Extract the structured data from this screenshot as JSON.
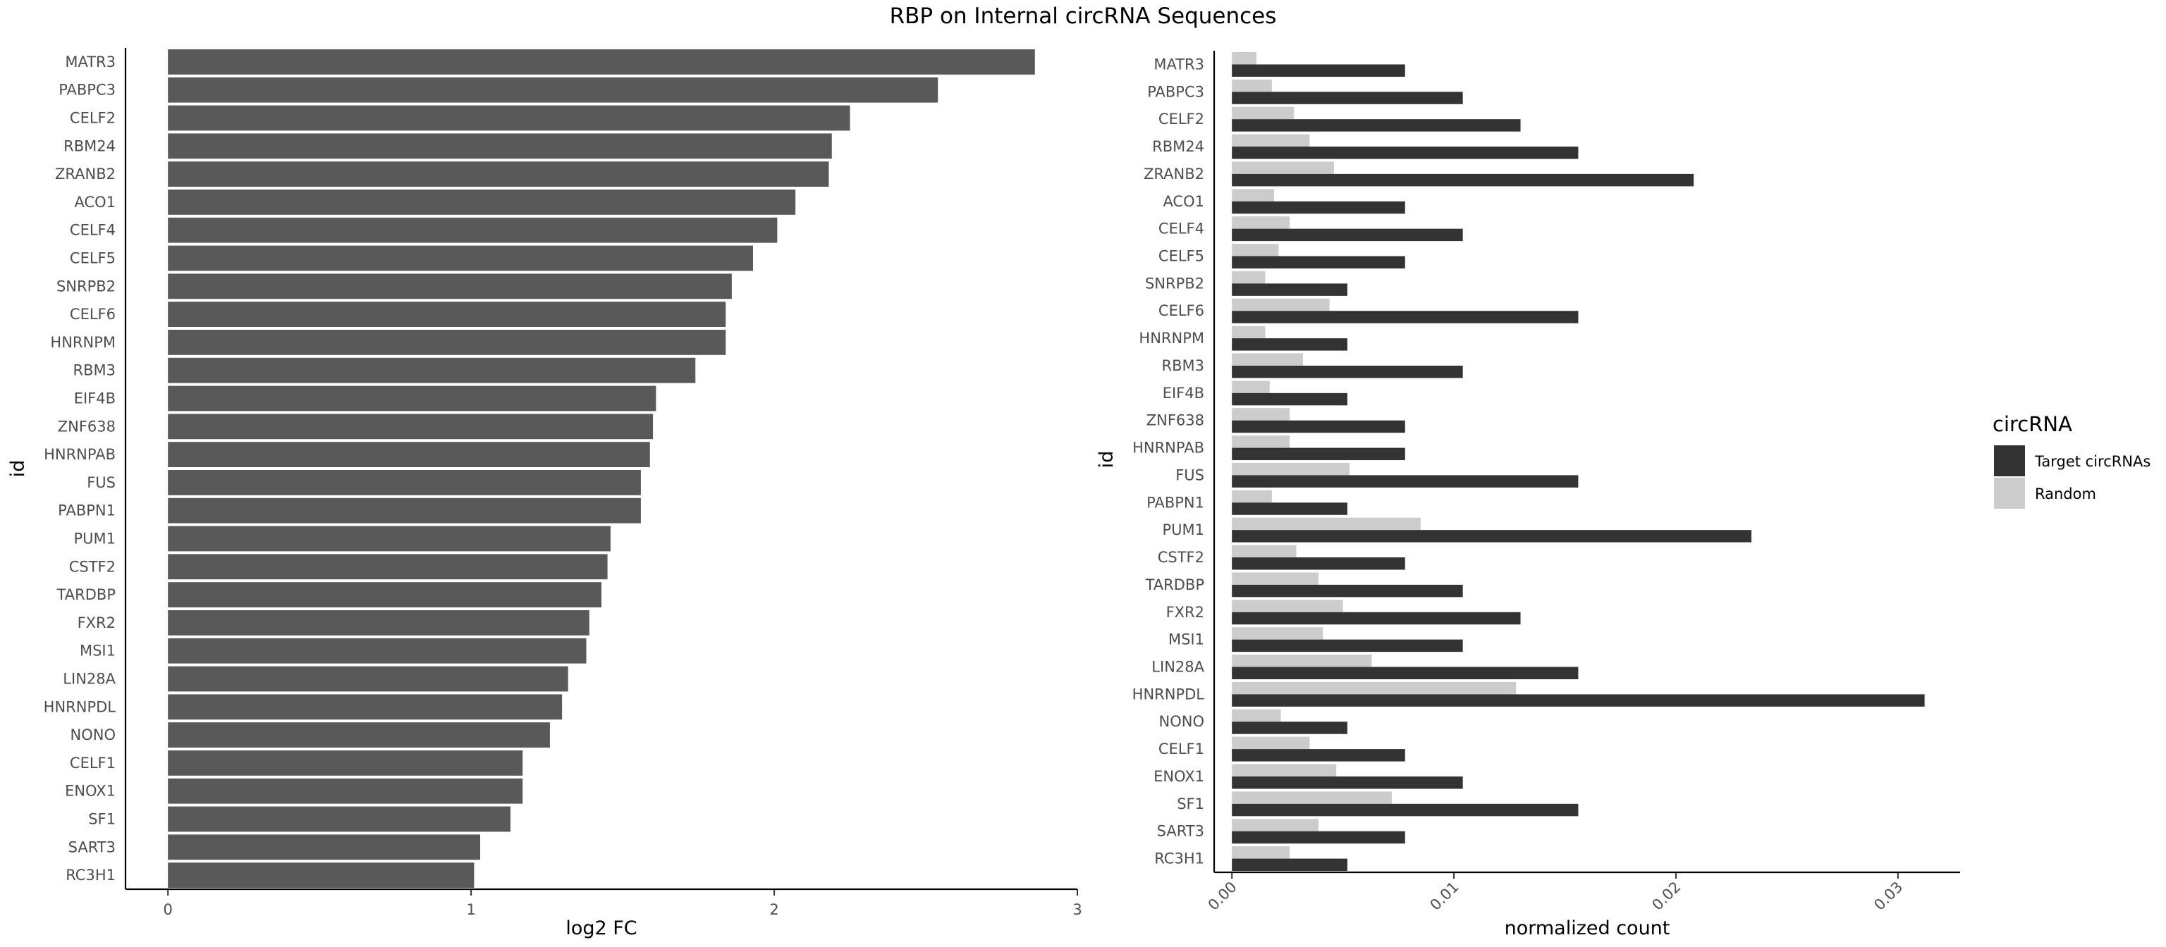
{
  "title": "RBP on Internal circRNA Sequences",
  "colors": {
    "left_bar": "#595959",
    "target": "#333333",
    "random": "#cccccc"
  },
  "chart_data": [
    {
      "type": "bar",
      "orientation": "horizontal",
      "xlabel": "log2 FC",
      "ylabel": "id",
      "xlim": [
        -0.14,
        3.0
      ],
      "xticks": [
        0,
        1,
        2,
        3
      ],
      "categories": [
        "MATR3",
        "PABPC3",
        "CELF2",
        "RBM24",
        "ZRANB2",
        "ACO1",
        "CELF4",
        "CELF5",
        "SNRPB2",
        "CELF6",
        "HNRNPM",
        "RBM3",
        "EIF4B",
        "ZNF638",
        "HNRNPAB",
        "FUS",
        "PABPN1",
        "PUM1",
        "CSTF2",
        "TARDBP",
        "FXR2",
        "MSI1",
        "LIN28A",
        "HNRNPDL",
        "NONO",
        "CELF1",
        "ENOX1",
        "SF1",
        "SART3",
        "RC3H1"
      ],
      "values": [
        2.86,
        2.54,
        2.25,
        2.19,
        2.18,
        2.07,
        2.01,
        1.93,
        1.86,
        1.84,
        1.84,
        1.74,
        1.61,
        1.6,
        1.59,
        1.56,
        1.56,
        1.46,
        1.45,
        1.43,
        1.39,
        1.38,
        1.32,
        1.3,
        1.26,
        1.17,
        1.17,
        1.13,
        1.03,
        1.01
      ]
    },
    {
      "type": "bar",
      "orientation": "horizontal",
      "grouped": true,
      "xlabel": "normalized count",
      "ylabel": "id",
      "xlim": [
        -0.0008,
        0.0328
      ],
      "xticks": [
        0.0,
        0.01,
        0.02,
        0.03
      ],
      "xtick_labels": [
        "0.00",
        "0.01",
        "0.02",
        "0.03"
      ],
      "categories": [
        "MATR3",
        "PABPC3",
        "CELF2",
        "RBM24",
        "ZRANB2",
        "ACO1",
        "CELF4",
        "CELF5",
        "SNRPB2",
        "CELF6",
        "HNRNPM",
        "RBM3",
        "EIF4B",
        "ZNF638",
        "HNRNPAB",
        "FUS",
        "PABPN1",
        "PUM1",
        "CSTF2",
        "TARDBP",
        "FXR2",
        "MSI1",
        "LIN28A",
        "HNRNPDL",
        "NONO",
        "CELF1",
        "ENOX1",
        "SF1",
        "SART3",
        "RC3H1"
      ],
      "legend_title": "circRNA",
      "legend_position": "right",
      "series": [
        {
          "name": "Target circRNAs",
          "values": [
            0.0078,
            0.0104,
            0.013,
            0.0156,
            0.0208,
            0.0078,
            0.0104,
            0.0078,
            0.0052,
            0.0156,
            0.0052,
            0.0104,
            0.0052,
            0.0078,
            0.0078,
            0.0156,
            0.0052,
            0.0234,
            0.0078,
            0.0104,
            0.013,
            0.0104,
            0.0156,
            0.0312,
            0.0052,
            0.0078,
            0.0104,
            0.0156,
            0.0078,
            0.0052
          ]
        },
        {
          "name": "Random",
          "values": [
            0.0011,
            0.0018,
            0.0028,
            0.0035,
            0.0046,
            0.0019,
            0.0026,
            0.0021,
            0.0015,
            0.0044,
            0.0015,
            0.0032,
            0.0017,
            0.0026,
            0.0026,
            0.0053,
            0.0018,
            0.0085,
            0.0029,
            0.0039,
            0.005,
            0.0041,
            0.0063,
            0.0128,
            0.0022,
            0.0035,
            0.0047,
            0.0072,
            0.0039,
            0.0026
          ]
        }
      ]
    }
  ]
}
